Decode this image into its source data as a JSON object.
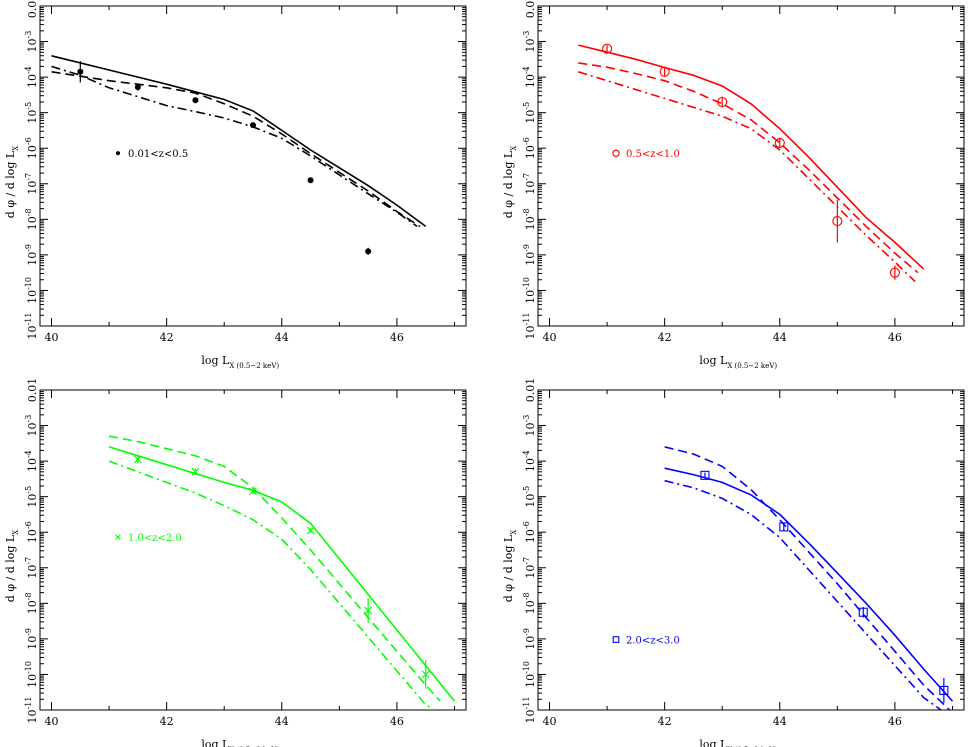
{
  "figure": {
    "xlabel_main": "log L",
    "xlabel_sub": "X (0.5−2 keV)",
    "ylabel_main": "d φ / d log L",
    "ylabel_sub": "X"
  },
  "chart_data": [
    {
      "type": "line",
      "panel": "top-left",
      "color": "#000000",
      "legend": "0.01<z<0.5",
      "marker": "dot",
      "xlim": [
        39.8,
        47.2
      ],
      "ylim_log10": [
        -11,
        -2
      ],
      "log_y": true,
      "xticks": [
        "40",
        "42",
        "44",
        "46"
      ],
      "yticks": [
        "0.01",
        "10-3",
        "10-4",
        "10-5",
        "10-6",
        "10-7",
        "10-8",
        "10-9",
        "10-10",
        "10-11"
      ],
      "series": [
        {
          "style": "solid",
          "x": [
            40.0,
            41.0,
            42.0,
            43.0,
            43.5,
            44.0,
            44.5,
            45.0,
            45.5,
            46.0,
            46.5
          ],
          "y_log10": [
            -3.4,
            -3.8,
            -4.2,
            -4.63,
            -4.95,
            -5.5,
            -6.05,
            -6.55,
            -7.05,
            -7.6,
            -8.2
          ]
        },
        {
          "style": "dashed",
          "x": [
            40.0,
            41.0,
            42.0,
            42.5,
            43.0,
            43.5,
            44.0,
            44.5,
            45.0,
            45.5,
            46.0,
            46.4
          ],
          "y_log10": [
            -3.85,
            -4.1,
            -4.3,
            -4.45,
            -4.75,
            -5.1,
            -5.6,
            -6.15,
            -6.68,
            -7.2,
            -7.78,
            -8.2
          ]
        },
        {
          "style": "dashdot",
          "x": [
            40.0,
            40.5,
            41.0,
            41.5,
            42.0,
            42.5,
            43.0,
            43.5,
            44.0,
            44.5,
            45.0,
            45.5,
            46.0,
            46.35
          ],
          "y_log10": [
            -3.7,
            -3.95,
            -4.3,
            -4.55,
            -4.8,
            -4.97,
            -5.15,
            -5.4,
            -5.72,
            -6.22,
            -6.75,
            -7.28,
            -7.8,
            -8.2
          ]
        }
      ],
      "points": {
        "x": [
          40.5,
          41.5,
          42.5,
          43.5,
          44.5,
          45.5
        ],
        "y_log10": [
          -3.85,
          -4.28,
          -4.65,
          -5.35,
          -6.9,
          -8.9
        ],
        "yerr": [
          0.3,
          0.1,
          0.08,
          0.05,
          0.06,
          0.1
        ]
      }
    },
    {
      "type": "line",
      "panel": "top-right",
      "color": "#ff0000",
      "legend": "0.5<z<1.0",
      "marker": "circle",
      "xlim": [
        39.8,
        47.2
      ],
      "ylim_log10": [
        -11,
        -2
      ],
      "log_y": true,
      "xticks": [
        "40",
        "42",
        "44",
        "46"
      ],
      "yticks": [
        "0.01",
        "10-3",
        "10-4",
        "10-5",
        "10-6",
        "10-7",
        "10-8",
        "10-9",
        "10-10",
        "10-11"
      ],
      "series": [
        {
          "style": "solid",
          "x": [
            40.5,
            41.0,
            41.5,
            42.0,
            42.5,
            43.0,
            43.5,
            44.0,
            44.5,
            45.0,
            45.5,
            46.0,
            46.5
          ],
          "y_log10": [
            -3.1,
            -3.3,
            -3.5,
            -3.73,
            -3.95,
            -4.25,
            -4.75,
            -5.45,
            -6.25,
            -7.1,
            -7.95,
            -8.65,
            -9.4
          ]
        },
        {
          "style": "dashed",
          "x": [
            40.5,
            41.0,
            41.5,
            42.0,
            42.5,
            43.0,
            43.5,
            44.0,
            44.5,
            45.0,
            45.5,
            46.0,
            46.4
          ],
          "y_log10": [
            -3.6,
            -3.72,
            -3.9,
            -4.1,
            -4.4,
            -4.75,
            -5.2,
            -5.85,
            -6.6,
            -7.4,
            -8.2,
            -8.95,
            -9.5
          ]
        },
        {
          "style": "dashdot",
          "x": [
            40.5,
            41.0,
            41.5,
            42.0,
            42.5,
            43.0,
            43.5,
            44.0,
            44.5,
            45.0,
            45.5,
            46.0,
            46.35
          ],
          "y_log10": [
            -3.85,
            -4.1,
            -4.35,
            -4.6,
            -4.85,
            -5.1,
            -5.45,
            -6.05,
            -6.85,
            -7.65,
            -8.45,
            -9.2,
            -9.75
          ]
        }
      ],
      "points": {
        "x": [
          41.0,
          42.0,
          43.0,
          44.0,
          45.0,
          46.0
        ],
        "y_log10": [
          -3.2,
          -3.85,
          -4.7,
          -5.85,
          -8.05,
          -9.5
        ],
        "yerr": [
          0.1,
          0.12,
          0.15,
          0.15,
          0.6,
          0.2
        ]
      }
    },
    {
      "type": "line",
      "panel": "bottom-left",
      "color": "#00ff00",
      "legend": "1.0<z<2.0",
      "marker": "cross",
      "xlim": [
        39.8,
        47.2
      ],
      "ylim_log10": [
        -11,
        -2
      ],
      "log_y": true,
      "xticks": [
        "40",
        "42",
        "44",
        "46"
      ],
      "yticks": [
        "0.01",
        "10-3",
        "10-4",
        "10-5",
        "10-6",
        "10-7",
        "10-8",
        "10-9",
        "10-10",
        "10-11"
      ],
      "series": [
        {
          "style": "solid",
          "x": [
            41.0,
            41.5,
            42.0,
            42.5,
            43.0,
            43.5,
            44.0,
            44.5,
            45.0,
            45.5,
            46.0,
            46.5,
            47.0
          ],
          "y_log10": [
            -3.6,
            -3.85,
            -4.1,
            -4.35,
            -4.6,
            -4.82,
            -5.15,
            -5.75,
            -6.75,
            -7.75,
            -8.75,
            -9.75,
            -10.75
          ]
        },
        {
          "style": "dashed",
          "x": [
            41.0,
            41.5,
            42.0,
            42.5,
            43.0,
            43.5,
            44.0,
            44.5,
            45.0,
            45.5,
            46.0,
            46.5,
            46.75
          ],
          "y_log10": [
            -3.3,
            -3.45,
            -3.65,
            -3.85,
            -4.15,
            -4.75,
            -5.6,
            -6.5,
            -7.45,
            -8.4,
            -9.35,
            -10.3,
            -10.75
          ]
        },
        {
          "style": "dashdot",
          "x": [
            41.0,
            41.5,
            42.0,
            42.5,
            43.0,
            43.5,
            44.0,
            44.5,
            45.0,
            45.5,
            46.0,
            46.5,
            46.65
          ],
          "y_log10": [
            -4.0,
            -4.3,
            -4.6,
            -4.9,
            -5.25,
            -5.65,
            -6.2,
            -7.05,
            -8.0,
            -8.95,
            -9.9,
            -10.85,
            -11.0
          ]
        }
      ],
      "points": {
        "x": [
          41.5,
          42.5,
          43.5,
          44.5,
          45.5,
          46.5
        ],
        "y_log10": [
          -3.95,
          -4.3,
          -4.85,
          -5.95,
          -8.2,
          -10.0
        ],
        "yerr": [
          0.12,
          0.1,
          0.08,
          0.06,
          0.35,
          0.4
        ]
      }
    },
    {
      "type": "line",
      "panel": "bottom-right",
      "color": "#0000ff",
      "legend": "2.0<z<3.0",
      "marker": "square",
      "xlim": [
        39.8,
        47.2
      ],
      "ylim_log10": [
        -11,
        -2
      ],
      "log_y": true,
      "xticks": [
        "40",
        "42",
        "44",
        "46"
      ],
      "yticks": [
        "0.01",
        "10-3",
        "10-4",
        "10-5",
        "10-6",
        "10-7",
        "10-8",
        "10-9",
        "10-10",
        "10-11"
      ],
      "series": [
        {
          "style": "solid",
          "x": [
            42.0,
            42.5,
            43.0,
            43.5,
            44.0,
            44.5,
            45.0,
            45.5,
            46.0,
            46.5,
            47.0
          ],
          "y_log10": [
            -4.2,
            -4.38,
            -4.6,
            -4.95,
            -5.5,
            -6.3,
            -7.15,
            -8.0,
            -8.9,
            -9.85,
            -10.75
          ]
        },
        {
          "style": "dashed",
          "x": [
            42.0,
            42.5,
            43.0,
            43.5,
            44.0,
            44.5,
            45.0,
            45.5,
            46.0,
            46.5,
            46.95
          ],
          "y_log10": [
            -3.6,
            -3.8,
            -4.15,
            -4.8,
            -5.65,
            -6.55,
            -7.45,
            -8.4,
            -9.35,
            -10.3,
            -11.0
          ]
        },
        {
          "style": "dashdot",
          "x": [
            42.0,
            42.5,
            43.0,
            43.5,
            44.0,
            44.5,
            45.0,
            45.5,
            46.0,
            46.5,
            46.8
          ],
          "y_log10": [
            -4.55,
            -4.75,
            -5.05,
            -5.5,
            -6.15,
            -7.05,
            -7.95,
            -8.85,
            -9.75,
            -10.65,
            -11.0
          ]
        }
      ],
      "points": {
        "x": [
          42.7,
          44.07,
          45.45,
          46.85
        ],
        "y_log10": [
          -4.4,
          -5.85,
          -8.25,
          -10.45
        ],
        "yerr": [
          0.08,
          0.1,
          0.15,
          0.35
        ]
      }
    }
  ]
}
